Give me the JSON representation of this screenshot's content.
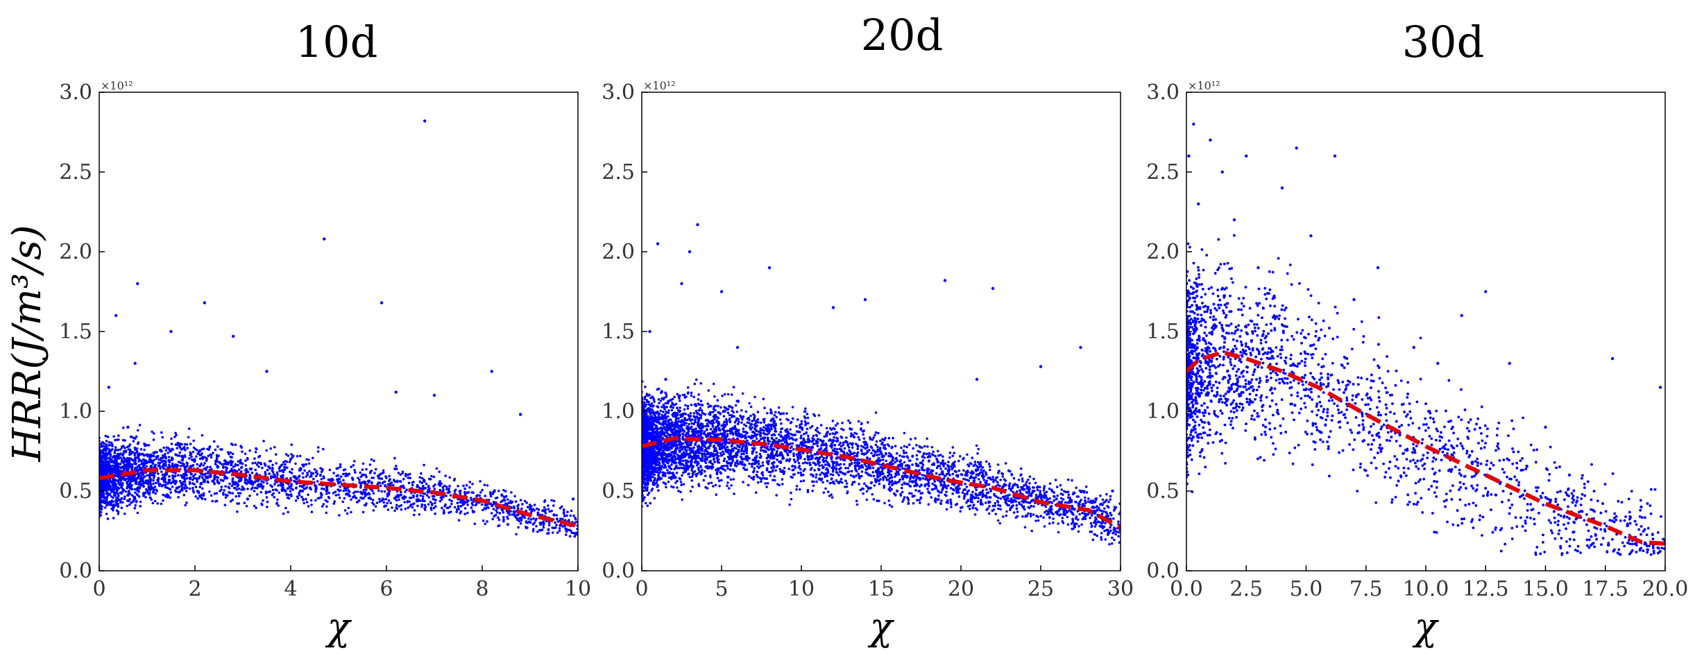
{
  "chart_data": [
    {
      "type": "scatter",
      "title": "10d",
      "xlabel": "χ",
      "ylabel": "HRR(J/m³/s)",
      "y_multiplier": "×10¹²",
      "xlim": [
        0,
        10
      ],
      "ylim": [
        0,
        3.0
      ],
      "xticks": [
        "0",
        "2",
        "4",
        "6",
        "8",
        "10"
      ],
      "yticks": [
        "0.0",
        "0.5",
        "1.0",
        "1.5",
        "2.0",
        "2.5",
        "3.0"
      ],
      "point_color": "#0000ff",
      "trend_color": "#e00000",
      "series": [
        {
          "kind": "points",
          "x": [
            0.05,
            0.12,
            0.2,
            0.3,
            0.35,
            0.5,
            0.6,
            0.75,
            0.8,
            1.0,
            1.3,
            1.5,
            1.8,
            2.2,
            2.5,
            2.8,
            3.1,
            3.5,
            4.0,
            4.2,
            4.7,
            5.0,
            5.5,
            5.9,
            6.2,
            6.8,
            7.0,
            7.5,
            8.2,
            8.8,
            9.5,
            9.9
          ],
          "y": [
            0.55,
            0.7,
            1.15,
            0.4,
            1.6,
            0.65,
            0.9,
            1.3,
            1.8,
            0.5,
            0.75,
            1.5,
            0.6,
            1.68,
            0.55,
            1.47,
            0.45,
            1.25,
            0.7,
            0.5,
            2.08,
            0.55,
            0.6,
            1.68,
            1.12,
            2.82,
            1.1,
            0.45,
            1.25,
            0.98,
            0.35,
            0.45
          ]
        },
        {
          "kind": "trend",
          "x": [
            0,
            1,
            2,
            3,
            4,
            5,
            6,
            7,
            8,
            9,
            10
          ],
          "y": [
            0.58,
            0.63,
            0.63,
            0.6,
            0.56,
            0.54,
            0.52,
            0.49,
            0.44,
            0.35,
            0.28
          ]
        }
      ]
    },
    {
      "type": "scatter",
      "title": "20d",
      "xlabel": "χ",
      "ylabel": "",
      "y_multiplier": "×10¹²",
      "xlim": [
        0,
        30
      ],
      "ylim": [
        0,
        3.0
      ],
      "xticks": [
        "0",
        "5",
        "10",
        "15",
        "20",
        "25",
        "30"
      ],
      "yticks": [
        "0.0",
        "0.5",
        "1.0",
        "1.5",
        "2.0",
        "2.5",
        "3.0"
      ],
      "point_color": "#0000ff",
      "trend_color": "#e00000",
      "series": [
        {
          "kind": "points",
          "x": [
            0.2,
            0.5,
            1.0,
            1.5,
            2.0,
            2.5,
            3.0,
            3.5,
            4.0,
            5.0,
            6.0,
            8.0,
            10.0,
            12.0,
            14.0,
            16.0,
            19.0,
            21.0,
            22.0,
            25.0,
            27.5,
            29.5
          ],
          "y": [
            0.9,
            1.5,
            2.05,
            1.2,
            0.6,
            1.8,
            2.0,
            2.17,
            0.8,
            1.75,
            1.4,
            1.9,
            0.6,
            1.65,
            1.7,
            0.5,
            1.82,
            1.2,
            1.77,
            1.28,
            1.4,
            0.5
          ]
        },
        {
          "kind": "trend",
          "x": [
            0,
            2,
            5,
            8,
            10,
            13,
            16,
            19,
            22,
            25,
            28,
            30
          ],
          "y": [
            0.78,
            0.83,
            0.82,
            0.79,
            0.76,
            0.71,
            0.64,
            0.57,
            0.52,
            0.43,
            0.38,
            0.27
          ]
        }
      ]
    },
    {
      "type": "scatter",
      "title": "30d",
      "xlabel": "χ",
      "ylabel": "",
      "y_multiplier": "×10¹²",
      "xlim": [
        0,
        20
      ],
      "ylim": [
        0,
        3.0
      ],
      "xticks": [
        "0.0",
        "2.5",
        "5.0",
        "7.5",
        "10.0",
        "12.5",
        "15.0",
        "17.5",
        "20.0"
      ],
      "yticks": [
        "0.0",
        "0.5",
        "1.0",
        "1.5",
        "2.0",
        "2.5",
        "3.0"
      ],
      "point_color": "#0000ff",
      "trend_color": "#e00000",
      "series": [
        {
          "kind": "points",
          "x": [
            0.1,
            0.3,
            0.5,
            1.0,
            1.5,
            2.0,
            2.5,
            3.0,
            4.0,
            4.6,
            5.2,
            6.2,
            7.0,
            8.0,
            9.5,
            10.5,
            11.5,
            12.5,
            13.5,
            15.0,
            16.0,
            17.8,
            19.0,
            19.8
          ],
          "y": [
            2.6,
            2.8,
            2.3,
            2.7,
            2.5,
            2.2,
            2.6,
            1.9,
            2.4,
            2.65,
            2.1,
            2.6,
            1.7,
            1.9,
            1.4,
            1.3,
            1.6,
            1.75,
            1.3,
            0.9,
            0.6,
            1.33,
            0.4,
            1.15
          ]
        },
        {
          "kind": "trend",
          "x": [
            0,
            0.5,
            1.5,
            2.5,
            4.0,
            5.5,
            7.5,
            10.0,
            12.5,
            15.0,
            17.5,
            19.0,
            20.0
          ],
          "y": [
            1.25,
            1.32,
            1.37,
            1.33,
            1.25,
            1.15,
            0.98,
            0.78,
            0.6,
            0.42,
            0.28,
            0.18,
            0.17
          ]
        }
      ]
    }
  ]
}
